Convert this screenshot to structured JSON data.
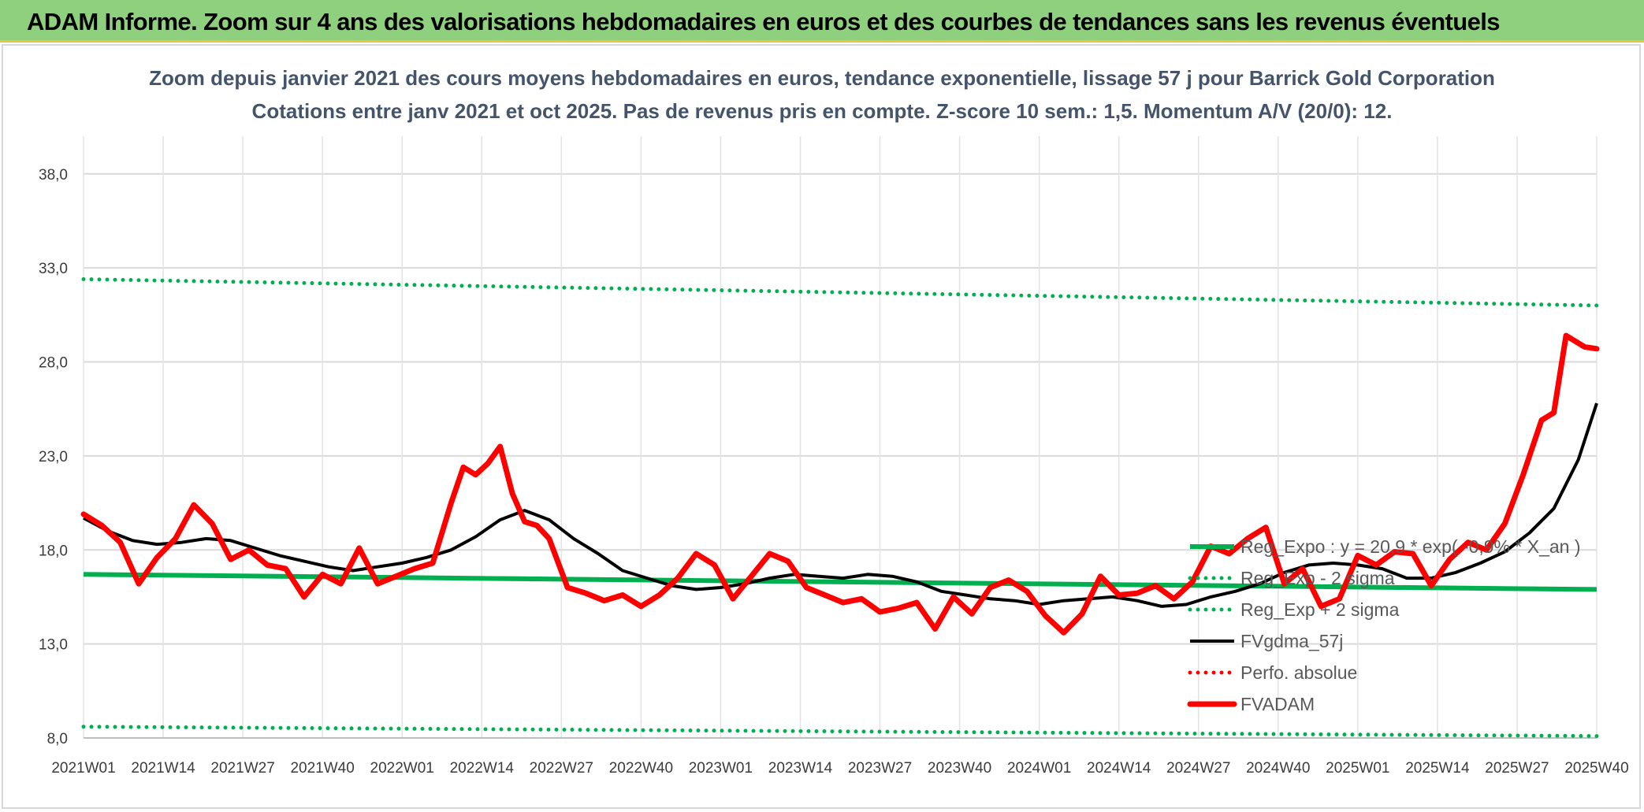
{
  "header": {
    "title": "ADAM Informe. Zoom sur 4 ans des valorisations hebdomadaires en euros et des courbes de tendances sans les revenus éventuels"
  },
  "chart_data": {
    "type": "line",
    "title": "Zoom depuis janvier 2021 des cours moyens hebdomadaires en euros, tendance exponentielle, lissage 57 j pour Barrick Gold Corporation",
    "subtitle": "Cotations entre janv 2021 et oct 2025. Pas de revenus pris en compte. Z-score 10 sem.: 1,5. Momentum A/V (20/0): 12.",
    "xlabel": "",
    "ylabel": "",
    "ylim": [
      8,
      40
    ],
    "y_ticks": [
      "8,0",
      "13,0",
      "18,0",
      "23,0",
      "28,0",
      "33,0",
      "38,0"
    ],
    "y_tick_values": [
      8,
      13,
      18,
      23,
      28,
      33,
      38
    ],
    "x_ticks": [
      "2021W01",
      "2021W14",
      "2021W27",
      "2021W40",
      "2022W01",
      "2022W14",
      "2022W27",
      "2022W40",
      "2023W01",
      "2023W14",
      "2023W27",
      "2023W40",
      "2024W01",
      "2024W14",
      "2024W27",
      "2024W40",
      "2025W01",
      "2025W14",
      "2025W27",
      "2025W40"
    ],
    "x_range_weeks": [
      0,
      247
    ],
    "grid": true,
    "legend_position": "right",
    "series": [
      {
        "name": "Reg_Expo : y = 20,9 * exp( -0,9% * X_an )",
        "color": "#00b050",
        "style": "solid",
        "x": [
          0,
          247
        ],
        "values": [
          16.7,
          15.9
        ]
      },
      {
        "name": "Reg_Exp - 2 sigma",
        "color": "#00b050",
        "style": "dotted",
        "x": [
          0,
          247
        ],
        "values": [
          8.6,
          8.1
        ]
      },
      {
        "name": "Reg_Exp + 2 sigma",
        "color": "#00b050",
        "style": "dotted",
        "x": [
          0,
          247
        ],
        "values": [
          32.4,
          31.0
        ]
      },
      {
        "name": "FVgdma_57j",
        "color": "#000000",
        "style": "solid",
        "x": [
          0,
          4,
          8,
          12,
          16,
          20,
          24,
          28,
          32,
          36,
          40,
          44,
          48,
          52,
          56,
          60,
          64,
          68,
          72,
          76,
          80,
          84,
          88,
          92,
          96,
          100,
          104,
          108,
          112,
          116,
          120,
          124,
          128,
          132,
          136,
          140,
          144,
          148,
          152,
          156,
          160,
          164,
          168,
          172,
          176,
          180,
          184,
          188,
          192,
          196,
          200,
          204,
          208,
          212,
          216,
          220,
          224,
          228,
          232,
          236,
          240,
          244,
          247
        ],
        "values": [
          19.7,
          19.0,
          18.5,
          18.3,
          18.4,
          18.6,
          18.5,
          18.1,
          17.7,
          17.4,
          17.1,
          16.9,
          17.1,
          17.3,
          17.6,
          18.0,
          18.7,
          19.6,
          20.1,
          19.6,
          18.6,
          17.8,
          16.9,
          16.5,
          16.1,
          15.9,
          16.0,
          16.2,
          16.5,
          16.7,
          16.6,
          16.5,
          16.7,
          16.6,
          16.3,
          15.8,
          15.6,
          15.4,
          15.3,
          15.1,
          15.3,
          15.4,
          15.5,
          15.3,
          15.0,
          15.1,
          15.5,
          15.8,
          16.2,
          16.8,
          17.2,
          17.3,
          17.2,
          17.0,
          16.5,
          16.5,
          16.8,
          17.3,
          17.9,
          18.9,
          20.2,
          22.8,
          25.8
        ]
      },
      {
        "name": "Perfo. absolue",
        "color": "#ff0000",
        "style": "dotted",
        "x": [],
        "values": []
      },
      {
        "name": "FVADAM",
        "color": "#ff0000",
        "style": "solid-thick",
        "x": [
          0,
          3,
          6,
          9,
          12,
          15,
          18,
          21,
          24,
          27,
          30,
          33,
          36,
          39,
          42,
          45,
          48,
          51,
          54,
          57,
          60,
          62,
          64,
          66,
          68,
          70,
          72,
          74,
          76,
          79,
          82,
          85,
          88,
          91,
          94,
          97,
          100,
          103,
          106,
          109,
          112,
          115,
          118,
          121,
          124,
          127,
          130,
          133,
          136,
          139,
          142,
          145,
          148,
          151,
          154,
          157,
          160,
          163,
          166,
          169,
          172,
          175,
          178,
          181,
          184,
          187,
          190,
          193,
          196,
          199,
          202,
          205,
          208,
          211,
          214,
          217,
          220,
          223,
          226,
          229,
          232,
          235,
          238,
          240,
          242,
          244,
          245,
          247
        ],
        "values": [
          19.9,
          19.3,
          18.4,
          16.2,
          17.6,
          18.6,
          20.4,
          19.4,
          17.5,
          18.0,
          17.2,
          17.0,
          15.5,
          16.7,
          16.2,
          18.1,
          16.2,
          16.6,
          17.0,
          17.3,
          20.5,
          22.4,
          22.0,
          22.6,
          23.5,
          21.0,
          19.5,
          19.3,
          18.6,
          16.0,
          15.7,
          15.3,
          15.6,
          15.0,
          15.6,
          16.5,
          17.8,
          17.2,
          15.4,
          16.6,
          17.8,
          17.4,
          16.0,
          15.6,
          15.2,
          15.4,
          14.7,
          14.9,
          15.2,
          13.8,
          15.5,
          14.6,
          16.0,
          16.4,
          15.8,
          14.5,
          13.6,
          14.6,
          16.6,
          15.6,
          15.7,
          16.1,
          15.4,
          16.3,
          18.2,
          17.8,
          18.6,
          19.2,
          16.2,
          17.0,
          15.0,
          15.4,
          17.7,
          17.2,
          17.9,
          17.8,
          16.1,
          17.5,
          18.4,
          18.0,
          19.4,
          22.0,
          24.9,
          25.3,
          29.4,
          29.0,
          28.8,
          28.7
        ]
      }
    ]
  }
}
